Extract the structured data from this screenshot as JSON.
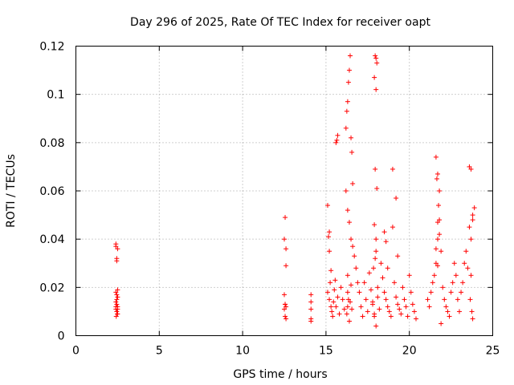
{
  "chart_data": {
    "type": "scatter",
    "title": "Day 296 of 2025, Rate Of TEC Index for receiver oapt",
    "xlabel": "GPS time / hours",
    "ylabel": "ROTI / TECUs",
    "xlim": [
      0,
      25
    ],
    "ylim": [
      0,
      0.12
    ],
    "xticks": [
      0,
      5,
      10,
      15,
      20,
      25
    ],
    "yticks": [
      0,
      0.02,
      0.04,
      0.06,
      0.08,
      0.1,
      0.12
    ],
    "xtick_labels": [
      "0",
      "5",
      "10",
      "15",
      "20",
      "25"
    ],
    "ytick_labels": [
      "0",
      "0.02",
      "0.04",
      "0.06",
      "0.08",
      "0.1",
      "0.12"
    ],
    "grid": true,
    "marker": "+",
    "series": [
      {
        "color": "#ff0000",
        "x": [
          2.4,
          2.4,
          2.45,
          2.45,
          2.5,
          2.5,
          2.4,
          2.45,
          2.5,
          2.4,
          2.45,
          2.5,
          2.4,
          2.45,
          2.5,
          2.4,
          2.45,
          2.5,
          2.42,
          2.48,
          12.5,
          12.6,
          12.55,
          12.6,
          12.5,
          12.55,
          12.6,
          12.5,
          12.55,
          12.6,
          12.55,
          14.1,
          14.1,
          14.1,
          14.1,
          14.1,
          15.1,
          15.2,
          15.15,
          15.2,
          15.3,
          15.25,
          15.1,
          15.2,
          15.3,
          15.35,
          15.4,
          15.45,
          15.5,
          15.55,
          15.6,
          15.7,
          15.8,
          15.9,
          16.0,
          16.1,
          15.6,
          15.65,
          15.7,
          16.2,
          16.25,
          16.3,
          16.35,
          16.4,
          16.45,
          16.5,
          16.55,
          16.6,
          16.2,
          16.3,
          16.4,
          16.5,
          16.6,
          16.7,
          16.8,
          16.9,
          16.3,
          16.35,
          16.3,
          16.25,
          16.4,
          16.5,
          16.3,
          16.45,
          16.55,
          17.0,
          17.1,
          17.2,
          17.3,
          17.4,
          17.5,
          17.6,
          17.7,
          17.8,
          17.9,
          18.0,
          18.1,
          18.2,
          17.95,
          18.0,
          18.05,
          17.9,
          18.0,
          17.95,
          18.05,
          17.9,
          18.0,
          17.95,
          17.85,
          18.1,
          17.8,
          17.9,
          18.0,
          18.3,
          18.4,
          18.5,
          18.6,
          18.7,
          18.8,
          18.9,
          19.0,
          19.1,
          19.2,
          19.3,
          19.4,
          19.5,
          19.6,
          19.7,
          19.8,
          19.9,
          20.0,
          20.1,
          20.2,
          20.3,
          20.4,
          19.0,
          19.2,
          19.3,
          18.5,
          18.6,
          18.7,
          21.1,
          21.2,
          21.3,
          21.4,
          21.5,
          21.6,
          21.7,
          21.8,
          21.9,
          22.0,
          22.1,
          22.2,
          22.3,
          22.4,
          22.5,
          22.6,
          22.7,
          22.8,
          22.9,
          23.0,
          21.6,
          21.7,
          21.65,
          21.8,
          21.75,
          21.7,
          21.8,
          21.6,
          21.7,
          21.9,
          23.1,
          23.2,
          23.3,
          23.4,
          23.5,
          23.6,
          23.7,
          23.8,
          23.9,
          23.6,
          23.7,
          23.8,
          23.65,
          23.75,
          23.8,
          23.7
        ],
        "y": [
          0.038,
          0.037,
          0.032,
          0.031,
          0.036,
          0.019,
          0.018,
          0.017,
          0.016,
          0.014,
          0.013,
          0.012,
          0.011,
          0.01,
          0.009,
          0.012,
          0.015,
          0.011,
          0.008,
          0.009,
          0.04,
          0.036,
          0.049,
          0.029,
          0.017,
          0.013,
          0.012,
          0.011,
          0.008,
          0.007,
          0.013,
          0.017,
          0.014,
          0.011,
          0.007,
          0.006,
          0.054,
          0.043,
          0.041,
          0.035,
          0.027,
          0.022,
          0.018,
          0.015,
          0.012,
          0.01,
          0.008,
          0.014,
          0.019,
          0.023,
          0.012,
          0.016,
          0.009,
          0.02,
          0.015,
          0.011,
          0.08,
          0.081,
          0.083,
          0.086,
          0.093,
          0.097,
          0.105,
          0.11,
          0.116,
          0.082,
          0.076,
          0.063,
          0.06,
          0.052,
          0.047,
          0.04,
          0.037,
          0.033,
          0.028,
          0.022,
          0.018,
          0.015,
          0.012,
          0.009,
          0.006,
          0.021,
          0.025,
          0.014,
          0.011,
          0.018,
          0.012,
          0.008,
          0.022,
          0.015,
          0.01,
          0.026,
          0.019,
          0.013,
          0.009,
          0.035,
          0.016,
          0.011,
          0.116,
          0.115,
          0.113,
          0.107,
          0.102,
          0.069,
          0.061,
          0.046,
          0.04,
          0.032,
          0.028,
          0.02,
          0.014,
          0.008,
          0.004,
          0.03,
          0.024,
          0.018,
          0.015,
          0.012,
          0.01,
          0.008,
          0.045,
          0.022,
          0.016,
          0.013,
          0.011,
          0.009,
          0.02,
          0.015,
          0.012,
          0.008,
          0.025,
          0.018,
          0.013,
          0.01,
          0.007,
          0.069,
          0.057,
          0.033,
          0.043,
          0.039,
          0.028,
          0.015,
          0.012,
          0.018,
          0.022,
          0.025,
          0.03,
          0.04,
          0.048,
          0.035,
          0.02,
          0.015,
          0.012,
          0.01,
          0.008,
          0.018,
          0.022,
          0.03,
          0.025,
          0.015,
          0.01,
          0.074,
          0.067,
          0.065,
          0.06,
          0.054,
          0.047,
          0.042,
          0.036,
          0.029,
          0.005,
          0.018,
          0.022,
          0.03,
          0.035,
          0.028,
          0.045,
          0.04,
          0.05,
          0.053,
          0.07,
          0.069,
          0.048,
          0.015,
          0.01,
          0.007,
          0.025
        ]
      }
    ]
  }
}
